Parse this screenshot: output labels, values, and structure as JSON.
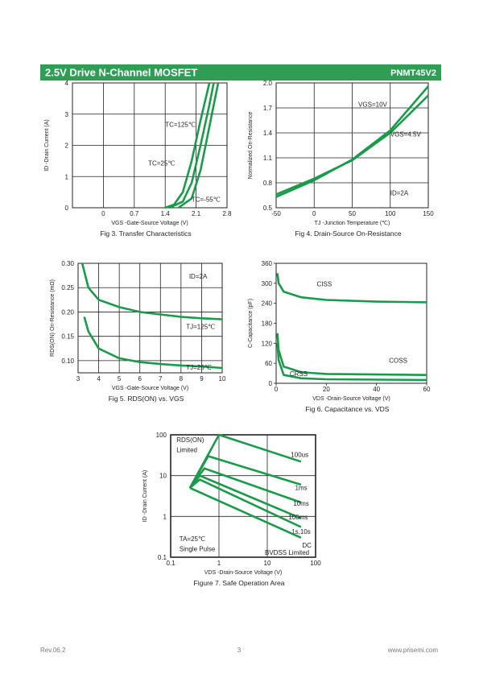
{
  "header": {
    "title": "2.5V Drive N-Channel MOSFET",
    "part": "PNMT45V2"
  },
  "footer": {
    "rev": "Rev.06.2",
    "page": "3",
    "site": "www.prisemi.com"
  },
  "chart_data": [
    {
      "type": "line",
      "title": "Fig 3. Transfer Characteristics",
      "xlabel": "VGS -Gate-Source Voltage (V)",
      "ylabel": "ID -Drain Current (A)",
      "xlim": [
        -0.7,
        2.8
      ],
      "xticks": [
        0,
        0.7,
        1.4,
        2.1,
        2.8
      ],
      "ylim": [
        0,
        4
      ],
      "yticks": [
        0,
        1,
        2,
        3,
        4
      ],
      "grid": true,
      "annotations": [
        "TC=125℃",
        "TC=25℃",
        "TC=-55℃"
      ],
      "series": [
        {
          "color": "#1a9a4a",
          "x": [
            1.4,
            1.6,
            1.8,
            2.0,
            2.2,
            2.4
          ],
          "values": [
            0,
            0.1,
            0.5,
            1.5,
            2.8,
            4
          ]
        },
        {
          "color": "#1a9a4a",
          "x": [
            1.5,
            1.8,
            2.0,
            2.2,
            2.4,
            2.5
          ],
          "values": [
            0,
            0.2,
            0.8,
            2.0,
            3.3,
            4
          ]
        },
        {
          "color": "#1a9a4a",
          "x": [
            1.7,
            2.0,
            2.2,
            2.4,
            2.6
          ],
          "values": [
            0,
            0.3,
            1.2,
            2.6,
            4
          ]
        }
      ]
    },
    {
      "type": "line",
      "title": "Fig 4. Drain-Source On-Resistance",
      "xlabel": "TJ -Junction Temperature (℃)",
      "ylabel": "Normalized On-Resistance",
      "xlim": [
        -50,
        150
      ],
      "xticks": [
        -50,
        0,
        50,
        100,
        150
      ],
      "ylim": [
        0.5,
        2.0
      ],
      "yticks": [
        0.5,
        0.8,
        1.1,
        1.4,
        1.7,
        {
          "value": 2.0,
          "label": "2.0"
        }
      ],
      "grid": true,
      "annotations": [
        "VGS=10V",
        "VGS=4.5V",
        "ID=2A"
      ],
      "series": [
        {
          "color": "#1a9a4a",
          "x": [
            -50,
            0,
            50,
            100,
            150
          ],
          "values": [
            0.66,
            0.85,
            1.07,
            1.4,
            1.85
          ]
        },
        {
          "color": "#1a9a4a",
          "x": [
            -50,
            0,
            50,
            100,
            150
          ],
          "values": [
            0.63,
            0.83,
            1.08,
            1.43,
            1.96
          ]
        }
      ]
    },
    {
      "type": "line",
      "title": "Fig 5. RDS(ON) vs. VGS",
      "xlabel": "VGS -Gate-Source Voltage (V)",
      "ylabel": "RDS(ON) On-Resistance (mΩ)",
      "xlim": [
        3,
        10
      ],
      "xticks": [
        3,
        4,
        5,
        6,
        7,
        8,
        9,
        10
      ],
      "ylim": [
        0.075,
        0.3
      ],
      "yticks": [
        {
          "value": 0.1,
          "label": "0.10"
        },
        0.15,
        {
          "value": 0.2,
          "label": "0.20"
        },
        0.25,
        {
          "value": 0.3,
          "label": "0.30"
        }
      ],
      "grid": true,
      "annotations": [
        "ID=2A",
        "TJ=125℃",
        "TJ=25℃"
      ],
      "series": [
        {
          "color": "#1a9a4a",
          "x": [
            3.2,
            3.5,
            4,
            5,
            6,
            7,
            8,
            9,
            10
          ],
          "values": [
            0.3,
            0.25,
            0.225,
            0.21,
            0.2,
            0.195,
            0.19,
            0.187,
            0.185
          ]
        },
        {
          "color": "#1a9a4a",
          "x": [
            3.3,
            3.5,
            4,
            5,
            6,
            7,
            8,
            9,
            10
          ],
          "values": [
            0.19,
            0.16,
            0.125,
            0.105,
            0.097,
            0.093,
            0.09,
            0.088,
            0.085
          ]
        }
      ]
    },
    {
      "type": "line",
      "title": "Fig 6. Capacitance vs. VDS",
      "xlabel": "VDS -Drain-Source Voltage (V)",
      "ylabel": "C-Capacitance (pF)",
      "xlim": [
        0,
        60
      ],
      "xticks": [
        0,
        20,
        40,
        60
      ],
      "ylim": [
        0,
        360
      ],
      "yticks": [
        0,
        60,
        120,
        180,
        240,
        300,
        360
      ],
      "grid": false,
      "annotations": [
        "CISS",
        "COSS",
        "CRSS"
      ],
      "series": [
        {
          "color": "#1a9a4a",
          "x": [
            0.5,
            1,
            3,
            10,
            20,
            40,
            60
          ],
          "values": [
            330,
            300,
            275,
            258,
            250,
            245,
            243
          ]
        },
        {
          "color": "#1a9a4a",
          "x": [
            0.5,
            1,
            3,
            10,
            20,
            60
          ],
          "values": [
            150,
            100,
            50,
            33,
            28,
            25
          ]
        },
        {
          "color": "#1a9a4a",
          "x": [
            0.5,
            1,
            3,
            10,
            20,
            60
          ],
          "values": [
            120,
            70,
            25,
            15,
            12,
            10
          ]
        }
      ]
    },
    {
      "type": "line",
      "title": "Figure 7. Safe Operation Area",
      "xlabel": "VDS -Drain-Source Voltage (V)",
      "ylabel": "ID -Drain Current (A)",
      "log": true,
      "xlim": [
        0.1,
        100
      ],
      "xticks": [
        0.1,
        1,
        10,
        100
      ],
      "ylim": [
        0.1,
        100
      ],
      "yticks": [
        0.1,
        1,
        10,
        100
      ],
      "grid": true,
      "annotations": [
        "RDS(ON)",
        "Limited",
        "TA=25℃",
        "Single Pulse",
        "BVDSS Limited"
      ],
      "series": [
        {
          "name": "100us",
          "color": "#1a9a4a",
          "x": [
            0.25,
            1,
            50
          ],
          "values": [
            5,
            100,
            22
          ]
        },
        {
          "name": "1ms",
          "color": "#1a9a4a",
          "x": [
            0.25,
            0.6,
            50
          ],
          "values": [
            5,
            30,
            6
          ]
        },
        {
          "name": "10ms",
          "color": "#1a9a4a",
          "x": [
            0.25,
            0.5,
            50
          ],
          "values": [
            5,
            15,
            2.2
          ]
        },
        {
          "name": "100ms",
          "color": "#1a9a4a",
          "x": [
            0.25,
            0.4,
            50
          ],
          "values": [
            5,
            10,
            0.9
          ]
        },
        {
          "name": "1s,10s",
          "color": "#1a9a4a",
          "x": [
            0.25,
            0.4,
            50
          ],
          "values": [
            5,
            8,
            0.55
          ]
        },
        {
          "name": "DC",
          "color": "#1a9a4a",
          "x": [
            0.25,
            50
          ],
          "values": [
            5,
            0.3
          ]
        }
      ]
    }
  ]
}
